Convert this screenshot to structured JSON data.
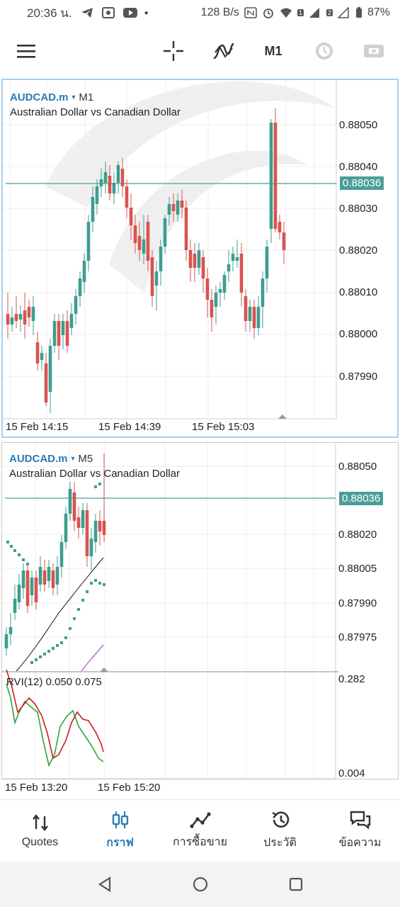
{
  "status": {
    "time": "20:36 น.",
    "speed": "128 B/s",
    "battery": "87%",
    "icons": [
      "telegram-icon",
      "screenshot-icon",
      "youtube-icon",
      "dot-icon",
      "nfc-icon",
      "alarm-icon",
      "wifi-icon",
      "signal-icon",
      "battery-icon"
    ],
    "sim1": "1",
    "sim2": "2"
  },
  "toolbar": {
    "menu_icon": "menu-icon",
    "crosshair_icon": "crosshair-icon",
    "indicators_icon": "indicators-icon",
    "timeframe": "M1",
    "history_icon": "clock-icon",
    "trade_icon": "trade-icon"
  },
  "chart1": {
    "symbol": "AUDCAD.m",
    "timeframe": "M1",
    "description": "Australian Dollar vs Canadian Dollar",
    "current_price": "0.88036",
    "y_labels": [
      "0.88050",
      "0.88040",
      "0.88030",
      "0.88020",
      "0.88010",
      "0.88000",
      "0.87990"
    ],
    "x_labels": [
      "15 Feb 14:15",
      "15 Feb 14:39",
      "15 Feb 15:03"
    ]
  },
  "chart2": {
    "symbol": "AUDCAD.m",
    "timeframe": "M5",
    "description": "Australian Dollar vs Canadian Dollar",
    "current_price": "0.88036",
    "y_labels": [
      "0.88050",
      "0.88020",
      "0.88005",
      "0.87990",
      "0.87975"
    ],
    "indicator_label": "RVI(12) 0.050 0.075",
    "indicator_y_labels": [
      "0.282",
      "0.004"
    ],
    "x_labels": [
      "15 Feb 13:20",
      "15 Feb 15:20"
    ]
  },
  "nav": {
    "items": [
      {
        "label": "Quotes",
        "icon": "quotes-icon"
      },
      {
        "label": "กราฟ",
        "icon": "candles-icon"
      },
      {
        "label": "การซื้อขาย",
        "icon": "trade-chart-icon"
      },
      {
        "label": "ประวัติ",
        "icon": "history-icon"
      },
      {
        "label": "ข้อความ",
        "icon": "messages-icon"
      }
    ]
  },
  "colors": {
    "bull": "#3d9d8f",
    "bear": "#d9534f",
    "accent": "#2a7ab6",
    "priceline": "#4a9e9a"
  }
}
